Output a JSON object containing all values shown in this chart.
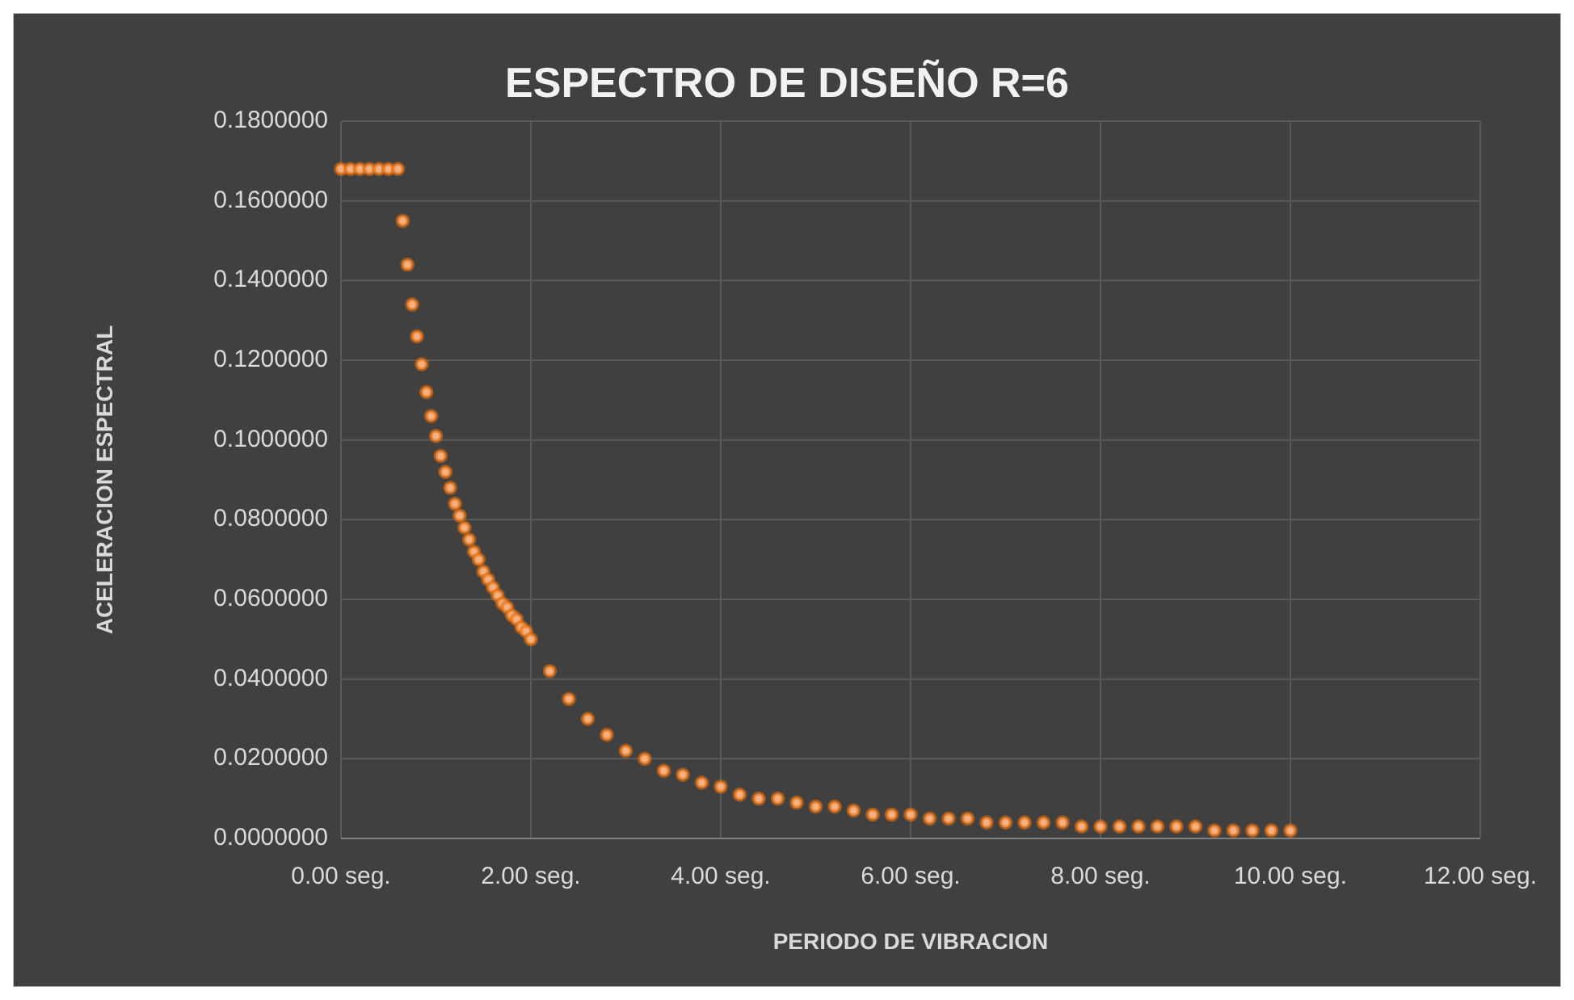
{
  "chart_data": {
    "type": "scatter",
    "title": "ESPECTRO DE DISEÑO R=6",
    "xlabel": "PERIODO DE VIBRACION",
    "ylabel": "ACELERACION ESPECTRAL",
    "series": [
      {
        "color": "#f4b183",
        "x": [
          0,
          0.1,
          0.2,
          0.3,
          0.4,
          0.5,
          0.6,
          0.65,
          0.7,
          0.75,
          0.8,
          0.85,
          0.9,
          0.95,
          1,
          1.05,
          1.1,
          1.15,
          1.2,
          1.25,
          1.3,
          1.35,
          1.4,
          1.45,
          1.5,
          1.55,
          1.6,
          1.65,
          1.7,
          1.75,
          1.8,
          1.85,
          1.9,
          1.95,
          2,
          2.2,
          2.4,
          2.6,
          2.8,
          3,
          3.2,
          3.4,
          3.6,
          3.8,
          4,
          4.2,
          4.4,
          4.6,
          4.8,
          5,
          5.2,
          5.4,
          5.6,
          5.8,
          6,
          6.2,
          6.4,
          6.6,
          6.8,
          7,
          7.2,
          7.4,
          7.6,
          7.8,
          8,
          8.2,
          8.4,
          8.6,
          8.8,
          9,
          9.2,
          9.4,
          9.6,
          9.8,
          10
        ],
        "values": [
          0.168,
          0.168,
          0.168,
          0.168,
          0.168,
          0.168,
          0.168,
          0.155,
          0.144,
          0.134,
          0.126,
          0.119,
          0.112,
          0.106,
          0.101,
          0.096,
          0.092,
          0.088,
          0.084,
          0.081,
          0.078,
          0.075,
          0.072,
          0.07,
          0.067,
          0.065,
          0.063,
          0.061,
          0.059,
          0.058,
          0.056,
          0.055,
          0.053,
          0.052,
          0.05,
          0.042,
          0.035,
          0.03,
          0.026,
          0.022,
          0.02,
          0.017,
          0.016,
          0.014,
          0.013,
          0.011,
          0.01,
          0.01,
          0.009,
          0.008,
          0.008,
          0.007,
          0.006,
          0.006,
          0.006,
          0.005,
          0.005,
          0.005,
          0.004,
          0.004,
          0.004,
          0.004,
          0.004,
          0.003,
          0.003,
          0.003,
          0.003,
          0.003,
          0.003,
          0.003,
          0.002,
          0.002,
          0.002,
          0.002,
          0.002
        ]
      }
    ],
    "xlim": [
      0,
      12
    ],
    "xticks": [
      {
        "value": 0,
        "label": "0.00 seg."
      },
      {
        "value": 2,
        "label": "2.00 seg."
      },
      {
        "value": 4,
        "label": "4.00 seg."
      },
      {
        "value": 6,
        "label": "6.00 seg."
      },
      {
        "value": 8,
        "label": "8.00 seg."
      },
      {
        "value": 10,
        "label": "10.00 seg."
      },
      {
        "value": 12,
        "label": "12.00 seg."
      }
    ],
    "ylim": [
      0,
      0.18
    ],
    "yticks": [
      {
        "value": 0,
        "label": "0.0000000"
      },
      {
        "value": 0.02,
        "label": "0.0200000"
      },
      {
        "value": 0.04,
        "label": "0.0400000"
      },
      {
        "value": 0.06,
        "label": "0.0600000"
      },
      {
        "value": 0.08,
        "label": "0.0800000"
      },
      {
        "value": 0.1,
        "label": "0.1000000"
      },
      {
        "value": 0.12,
        "label": "0.1200000"
      },
      {
        "value": 0.14,
        "label": "0.1400000"
      },
      {
        "value": 0.16,
        "label": "0.1600000"
      },
      {
        "value": 0.18,
        "label": "0.1800000"
      }
    ],
    "grid": true,
    "marker": "circle"
  }
}
